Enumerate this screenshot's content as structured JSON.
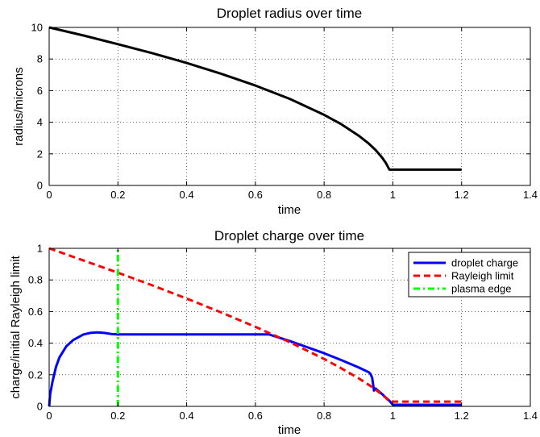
{
  "chart_data": [
    {
      "type": "line",
      "title": "Droplet radius over time",
      "xlabel": "time",
      "ylabel": "radius/microns",
      "xlim": [
        0,
        1.4
      ],
      "ylim": [
        0,
        10
      ],
      "xticks": [
        "0",
        "0.2",
        "0.4",
        "0.6",
        "0.8",
        "1",
        "1.2",
        "1.4"
      ],
      "yticks": [
        "0",
        "2",
        "4",
        "6",
        "8",
        "10"
      ],
      "grid": true,
      "series": [
        {
          "color": "#000000",
          "style": "solid",
          "x": [
            0,
            0.1,
            0.2,
            0.3,
            0.4,
            0.5,
            0.6,
            0.7,
            0.8,
            0.85,
            0.9,
            0.93,
            0.95,
            0.97,
            0.98,
            0.99,
            1.0,
            1.1,
            1.2
          ],
          "y": [
            10,
            9.49,
            8.94,
            8.37,
            7.75,
            7.07,
            6.32,
            5.48,
            4.47,
            3.87,
            3.16,
            2.65,
            2.24,
            1.73,
            1.41,
            1.0,
            1.0,
            1.0,
            1.0
          ]
        }
      ]
    },
    {
      "type": "line",
      "title": "Droplet charge over time",
      "xlabel": "time",
      "ylabel": "charge/initial Rayleigh limit",
      "xlim": [
        0,
        1.4
      ],
      "ylim": [
        0,
        1
      ],
      "xticks": [
        "0",
        "0.2",
        "0.4",
        "0.6",
        "0.8",
        "1",
        "1.2",
        "1.4"
      ],
      "yticks": [
        "0",
        "0.2",
        "0.4",
        "0.6",
        "0.8",
        "1"
      ],
      "grid": true,
      "legend_position": "top-right",
      "series": [
        {
          "name": "droplet charge",
          "color": "#0000ff",
          "style": "solid",
          "x": [
            0,
            0.003,
            0.01,
            0.02,
            0.03,
            0.05,
            0.07,
            0.1,
            0.12,
            0.14,
            0.16,
            0.18,
            0.2,
            0.3,
            0.4,
            0.5,
            0.6,
            0.64,
            0.7,
            0.8,
            0.85,
            0.9,
            0.93,
            0.935,
            0.94,
            0.945,
            0.95,
            0.96,
            0.97,
            0.98,
            0.99,
            1.0,
            1.1,
            1.2
          ],
          "y": [
            0,
            0.08,
            0.16,
            0.25,
            0.31,
            0.38,
            0.42,
            0.455,
            0.465,
            0.468,
            0.465,
            0.458,
            0.455,
            0.455,
            0.455,
            0.455,
            0.455,
            0.455,
            0.414,
            0.336,
            0.293,
            0.247,
            0.216,
            0.205,
            0.18,
            0.1,
            0.113,
            0.094,
            0.075,
            0.055,
            0.035,
            0.01,
            0.01,
            0.01
          ]
        },
        {
          "name": "Rayleigh limit",
          "color": "#ff0000",
          "style": "dashed",
          "x": [
            0,
            0.1,
            0.2,
            0.3,
            0.4,
            0.5,
            0.6,
            0.7,
            0.8,
            0.85,
            0.9,
            0.93,
            0.95,
            0.97,
            0.98,
            0.99,
            1.0,
            1.1,
            1.2
          ],
          "y": [
            1.0,
            0.923,
            0.846,
            0.766,
            0.682,
            0.595,
            0.503,
            0.406,
            0.3,
            0.241,
            0.178,
            0.136,
            0.106,
            0.072,
            0.053,
            0.03,
            0.03,
            0.03,
            0.03
          ]
        },
        {
          "name": "plasma edge",
          "color": "#00ff00",
          "style": "dashdot",
          "x": [
            0.2,
            0.2
          ],
          "y": [
            0,
            1
          ]
        }
      ]
    }
  ]
}
